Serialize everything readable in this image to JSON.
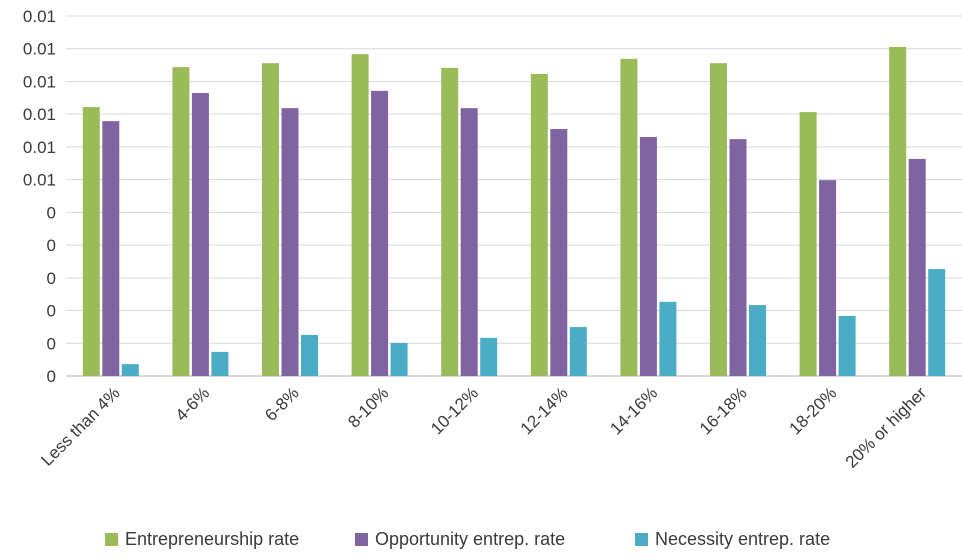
{
  "chart_data": {
    "type": "bar",
    "categories": [
      "Less than 4%",
      "4-6%",
      "6-8%",
      "8-10%",
      "10-12%",
      "12-14%",
      "14-16%",
      "16-18%",
      "18-20%",
      "20% or higher"
    ],
    "series": [
      {
        "name": "Entrepreneurship rate",
        "color": "#9bbb59",
        "values": [
          0.00747,
          0.00858,
          0.00869,
          0.00894,
          0.00856,
          0.00839,
          0.00881,
          0.00869,
          0.00733,
          0.00914
        ]
      },
      {
        "name": "Opportunity entrep. rate",
        "color": "#8064a2",
        "values": [
          0.00708,
          0.00786,
          0.00744,
          0.00792,
          0.00744,
          0.00686,
          0.00664,
          0.00658,
          0.00544,
          0.00603
        ]
      },
      {
        "name": "Necessity entrep. rate",
        "color": "#4bacc6",
        "values": [
          0.00033,
          0.00067,
          0.00114,
          0.00092,
          0.00106,
          0.00136,
          0.00206,
          0.00197,
          0.00167,
          0.00297
        ]
      }
    ],
    "y_ticks": [
      "0",
      "0",
      "0",
      "0",
      "0",
      "0",
      "0.01",
      "0.01",
      "0.01",
      "0.01",
      "0.01",
      "0.01"
    ],
    "ylim": [
      0,
      0.01
    ],
    "grid": true,
    "legend_position": "bottom"
  }
}
